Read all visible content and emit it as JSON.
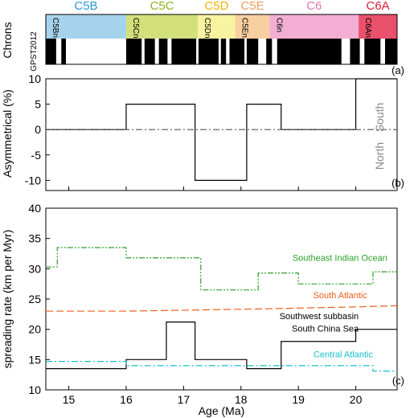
{
  "chart_data": [
    {
      "type": "timescale",
      "panel_label": "(a)",
      "ylabel": "Chrons",
      "gpts_label": "GPST2012",
      "xlim": [
        14.6,
        20.72
      ],
      "chrons": [
        {
          "name": "C5B",
          "start": 14.6,
          "end": 16.0,
          "color": "#a6d3ec",
          "text_color": "#2f96d2",
          "sub": "C5Bn"
        },
        {
          "name": "C5C",
          "start": 16.0,
          "end": 17.25,
          "color": "#d1e07a",
          "text_color": "#8fb51e",
          "sub": "C5Cn"
        },
        {
          "name": "C5D",
          "start": 17.25,
          "end": 17.9,
          "color": "#f8f3a0",
          "text_color": "#f0b400",
          "sub": "C5Dn"
        },
        {
          "name": "C5E",
          "start": 17.9,
          "end": 18.5,
          "color": "#f8cfa0",
          "text_color": "#f29a5c",
          "sub": "C5En"
        },
        {
          "name": "C6",
          "start": 18.5,
          "end": 20.05,
          "color": "#f2aed3",
          "text_color": "#e07aa8",
          "sub": "C6n"
        },
        {
          "name": "C6A",
          "start": 20.05,
          "end": 20.72,
          "color": "#e9506a",
          "text_color": "#d81e3c",
          "sub": "C6An"
        }
      ],
      "normal_polarity": [
        [
          14.6,
          14.78
        ],
        [
          14.87,
          14.95
        ],
        [
          16.0,
          16.27
        ],
        [
          16.32,
          16.5
        ],
        [
          16.57,
          16.72
        ],
        [
          16.79,
          17.22
        ],
        [
          17.26,
          17.61
        ],
        [
          17.65,
          17.74
        ],
        [
          17.8,
          18.06
        ],
        [
          18.1,
          18.3
        ],
        [
          18.44,
          18.54
        ],
        [
          18.63,
          19.75
        ],
        [
          19.9,
          20.07
        ],
        [
          20.15,
          20.43
        ],
        [
          20.51,
          20.72
        ]
      ]
    },
    {
      "type": "line",
      "panel_label": "(b)",
      "ylabel": "Asymmetrical (%)",
      "xlim": [
        14.6,
        20.72
      ],
      "ylim": [
        -12,
        10
      ],
      "yticks": [
        -10,
        -5,
        0,
        5,
        10
      ],
      "side_labels": {
        "top": "South",
        "bottom": "North"
      },
      "series": [
        {
          "x": [
            14.6,
            16.0,
            16.0,
            17.2,
            17.2,
            18.1,
            18.1,
            18.7,
            18.7,
            20.0,
            20.0,
            20.72
          ],
          "y": [
            0,
            0,
            5,
            5,
            -10,
            -10,
            5,
            5,
            0,
            0,
            10,
            10
          ],
          "color": "#000000",
          "style": "solid"
        },
        {
          "x": [
            14.6,
            20.72
          ],
          "y": [
            0,
            0
          ],
          "color": "#555555",
          "style": "dashdot"
        }
      ]
    },
    {
      "type": "line",
      "panel_label": "(c)",
      "xlabel": "Age (Ma)",
      "ylabel": "spreading rate (km per Myr)",
      "xlim": [
        14.6,
        20.72
      ],
      "ylim": [
        10,
        40
      ],
      "xticks": [
        15,
        16,
        17,
        18,
        19,
        20
      ],
      "yticks": [
        10,
        15,
        20,
        25,
        30,
        35,
        40
      ],
      "series": [
        {
          "name": "Southeast Indian Ocean",
          "color": "#2ca02c",
          "style": "dashdotdot",
          "x": [
            14.6,
            14.8,
            14.8,
            16.0,
            16.0,
            17.3,
            17.3,
            18.3,
            18.3,
            19.0,
            19.0,
            20.3,
            20.3,
            20.72
          ],
          "y": [
            30.3,
            30.3,
            33.5,
            33.5,
            31.8,
            31.8,
            26.5,
            26.5,
            29.3,
            29.3,
            27.5,
            27.5,
            29.5,
            29.5
          ]
        },
        {
          "name": "South Atlantic",
          "color": "#e8601c",
          "style": "dashed",
          "x": [
            14.6,
            16.0,
            17.3,
            18.5,
            20.0,
            20.72
          ],
          "y": [
            23.0,
            23.0,
            23.2,
            23.4,
            23.7,
            23.9
          ]
        },
        {
          "name": "Southwest subbasin South China Sea",
          "color": "#000000",
          "style": "solid",
          "x": [
            14.6,
            16.0,
            16.0,
            16.7,
            16.7,
            17.2,
            17.2,
            18.1,
            18.1,
            18.7,
            18.7,
            20.0,
            20.0,
            20.72
          ],
          "y": [
            13.5,
            13.5,
            15.0,
            15.0,
            21.2,
            21.2,
            15.0,
            15.0,
            13.5,
            13.5,
            18.0,
            18.0,
            20.0,
            20.0
          ]
        },
        {
          "name": "Central Atlantic",
          "color": "#17becf",
          "style": "dashdot",
          "x": [
            14.6,
            16.0,
            16.0,
            20.3,
            20.3,
            20.72
          ],
          "y": [
            14.7,
            14.7,
            14.0,
            14.0,
            13.1,
            13.1
          ]
        }
      ],
      "annotations": [
        {
          "text": "Southeast Indian Ocean",
          "x": 20.55,
          "y": 31.3,
          "color": "#2ca02c"
        },
        {
          "text": "South Atlantic",
          "x": 20.2,
          "y": 25.1,
          "color": "#e8601c"
        },
        {
          "text": "Southwest subbasin",
          "x": 20.05,
          "y": 21.7,
          "color": "#000000"
        },
        {
          "text": "South China Sea",
          "x": 20.05,
          "y": 19.6,
          "color": "#000000"
        },
        {
          "text": "Central Atlantic",
          "x": 20.3,
          "y": 15.4,
          "color": "#17becf"
        }
      ]
    }
  ]
}
